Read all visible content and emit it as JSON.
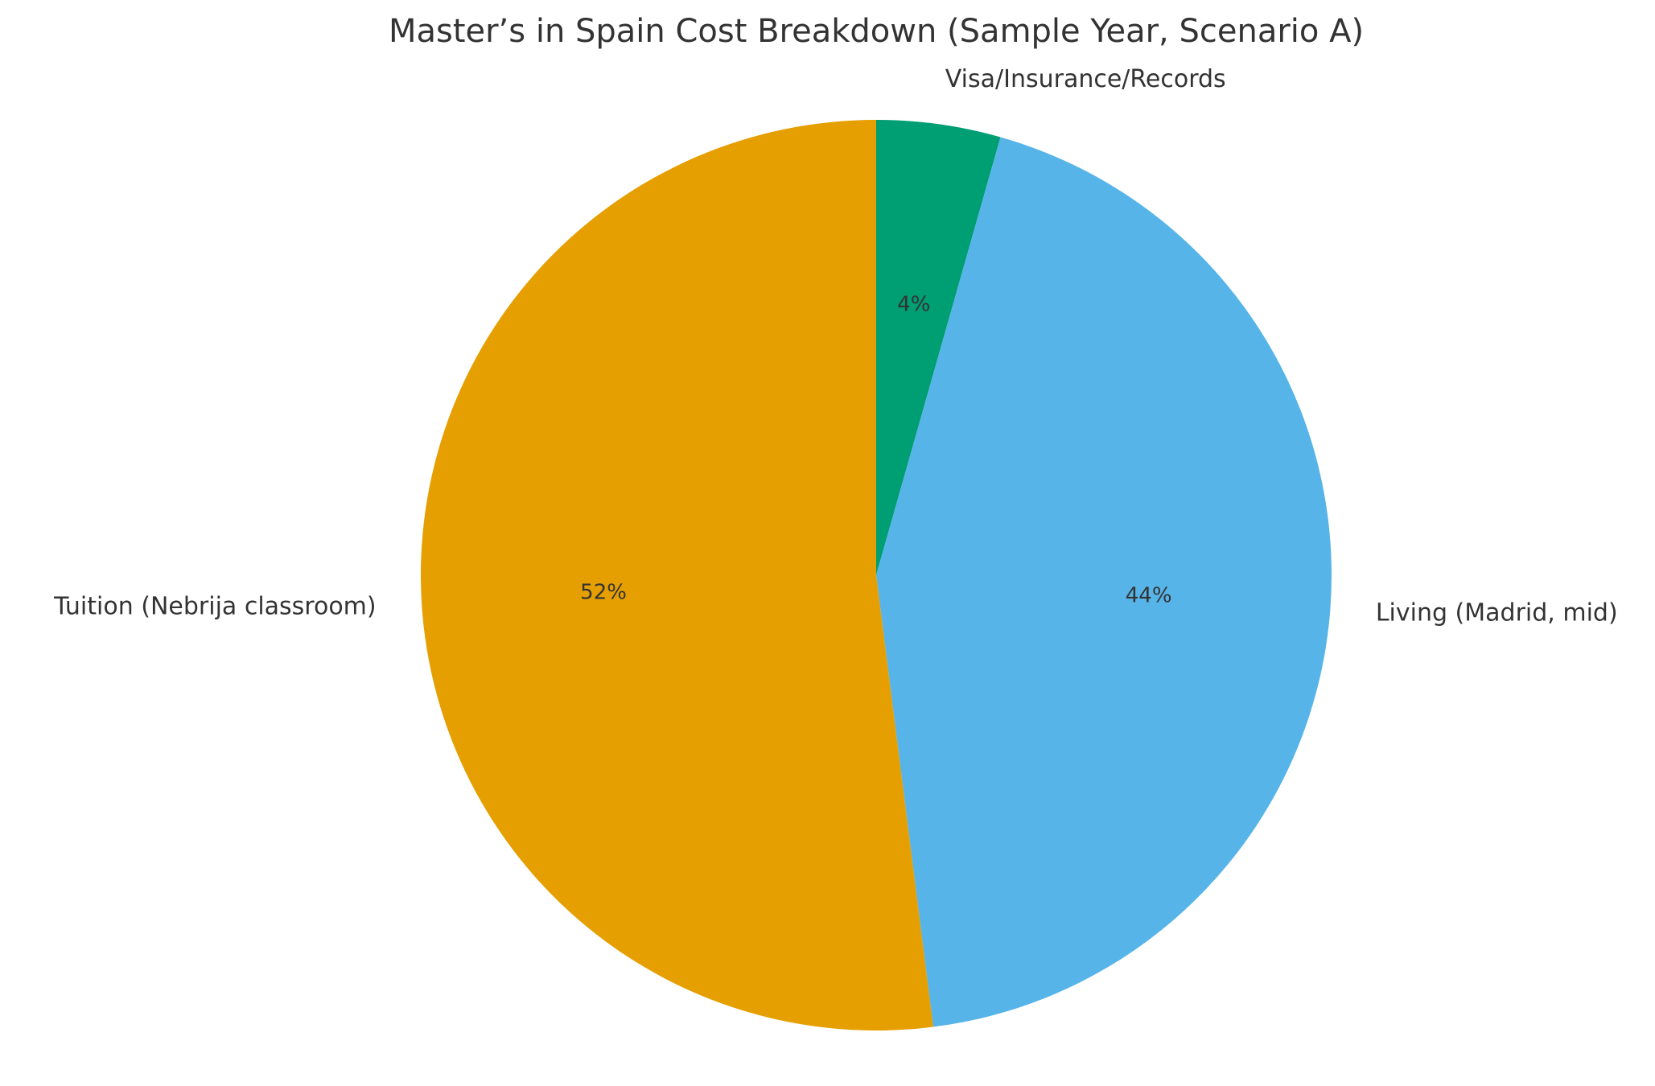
{
  "chart_data": {
    "type": "pie",
    "title": "Master’s in Spain Cost Breakdown (Sample Year, Scenario A)",
    "slices": [
      {
        "label": "Visa/Insurance/Records",
        "value": 4.4,
        "pct_label": "4%",
        "color": "#009E73"
      },
      {
        "label": "Living (Madrid, mid)",
        "value": 43.6,
        "pct_label": "44%",
        "color": "#56B4E9"
      },
      {
        "label": "Tuition (Nebrija classroom)",
        "value": 52.0,
        "pct_label": "52%",
        "color": "#E69F00"
      }
    ],
    "start_angle": 90,
    "direction": "clockwise",
    "legend": "none"
  }
}
